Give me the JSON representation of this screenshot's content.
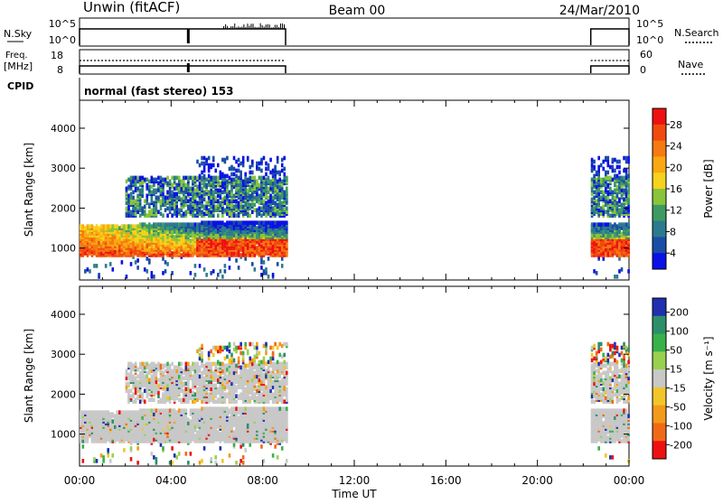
{
  "header": {
    "station_label": "Unwin (fitACF)",
    "beam_label": "Beam 00",
    "date_label": "24/Mar/2010"
  },
  "status_panels": {
    "nsky_label": "N.Sky",
    "nsky_ticks": [
      "10^5",
      "10^0"
    ],
    "nsearch_label": "N.Search",
    "nsearch_ticks": [
      "10^5",
      "10^0"
    ],
    "freq_label": "Freq.",
    "freq_unit": "[MHz]",
    "freq_ticks": [
      "18",
      "8"
    ],
    "nave_label": "Nave",
    "nave_ticks": [
      "60",
      "0"
    ],
    "cpid_label": "CPID",
    "cpid_value": "normal (fast stereo) 153"
  },
  "chart_data": [
    {
      "type": "heatmap",
      "name": "power",
      "ylabel": "Slant Range [km]",
      "yticks": [
        "4000",
        "3000",
        "2000",
        "1000"
      ],
      "ylim": [
        200,
        4700
      ],
      "x_ticks": [
        "00:00",
        "04:00",
        "08:00",
        "12:00",
        "16:00",
        "20:00",
        "00:00"
      ],
      "colorbar": {
        "label": "Power [dB]",
        "ticks": [
          "28",
          "24",
          "20",
          "16",
          "12",
          "8",
          "4"
        ],
        "colors": [
          "#ee1111",
          "#f04a0f",
          "#f57a10",
          "#f9a812",
          "#f6d21c",
          "#88c53a",
          "#3d9a62",
          "#2c7a8f",
          "#1a4da5",
          "#0a10e6"
        ]
      },
      "data_segments": [
        {
          "start": "00:00",
          "end": "09:00",
          "main_band_km": [
            800,
            1500
          ],
          "upper_bands_km": [
            1800,
            2800
          ]
        },
        {
          "start": "22:20",
          "end": "24:00",
          "main_band_km": [
            800,
            1500
          ],
          "upper_bands_km": [
            1800,
            2800
          ]
        }
      ]
    },
    {
      "type": "heatmap",
      "name": "velocity",
      "ylabel": "Slant Range [km]",
      "yticks": [
        "4000",
        "3000",
        "2000",
        "1000"
      ],
      "ylim": [
        200,
        4700
      ],
      "x_ticks": [
        "00:00",
        "04:00",
        "08:00",
        "12:00",
        "16:00",
        "20:00",
        "00:00"
      ],
      "xlabel": "Time UT",
      "colorbar": {
        "label": "Velocity [m s⁻¹]",
        "ticks": [
          "200",
          "100",
          "50",
          "15",
          "-15",
          "-50",
          "-100",
          "-200"
        ],
        "colors": [
          "#1f2fb0",
          "#2d8f6a",
          "#37b24a",
          "#9ad050",
          "#c8c8c8",
          "#f2c62a",
          "#f49a1a",
          "#f06a16",
          "#ee1111"
        ]
      },
      "data_segments": [
        {
          "start": "00:00",
          "end": "09:00",
          "main_band_km": [
            800,
            1500
          ],
          "upper_bands_km": [
            1800,
            2800
          ]
        },
        {
          "start": "22:20",
          "end": "24:00",
          "main_band_km": [
            800,
            1500
          ],
          "upper_bands_km": [
            1800,
            2800
          ]
        }
      ]
    }
  ]
}
